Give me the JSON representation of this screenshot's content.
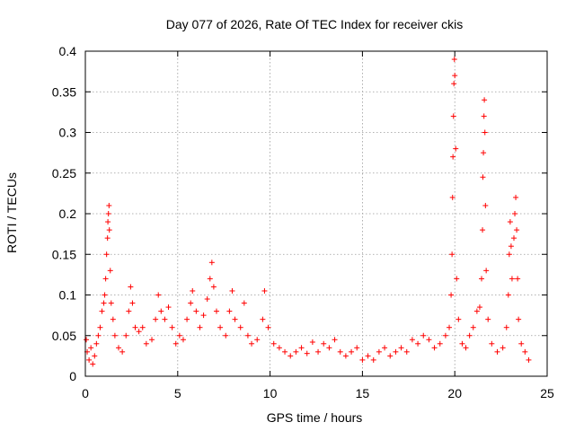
{
  "chart_data": {
    "type": "scatter",
    "title": "Day 077 of 2026, Rate Of TEC Index for receiver ckis",
    "xlabel": "GPS time / hours",
    "ylabel": "ROTI / TECUs",
    "xlim": [
      0,
      25
    ],
    "ylim": [
      0,
      0.4
    ],
    "x_ticks": [
      0,
      5,
      10,
      15,
      20,
      25
    ],
    "y_ticks": [
      0,
      0.05,
      0.1,
      0.15,
      0.2,
      0.25,
      0.3,
      0.35,
      0.4
    ],
    "x_tick_labels": [
      "0",
      "5",
      "10",
      "15",
      "20",
      "25"
    ],
    "y_tick_labels": [
      "0",
      "0.05",
      "0.1",
      "0.15",
      "0.2",
      "0.25",
      "0.3",
      "0.35",
      "0.4"
    ],
    "grid": true,
    "marker": "+",
    "color": "#ff0000",
    "series": [
      {
        "name": "ROTI",
        "points": [
          [
            0.05,
            0.045
          ],
          [
            0.1,
            0.03
          ],
          [
            0.2,
            0.02
          ],
          [
            0.3,
            0.035
          ],
          [
            0.4,
            0.015
          ],
          [
            0.5,
            0.025
          ],
          [
            0.6,
            0.04
          ],
          [
            0.7,
            0.05
          ],
          [
            0.8,
            0.06
          ],
          [
            0.9,
            0.08
          ],
          [
            1.0,
            0.09
          ],
          [
            1.05,
            0.1
          ],
          [
            1.1,
            0.12
          ],
          [
            1.15,
            0.15
          ],
          [
            1.2,
            0.17
          ],
          [
            1.22,
            0.19
          ],
          [
            1.25,
            0.2
          ],
          [
            1.28,
            0.21
          ],
          [
            1.3,
            0.18
          ],
          [
            1.35,
            0.13
          ],
          [
            1.4,
            0.09
          ],
          [
            1.5,
            0.07
          ],
          [
            1.6,
            0.05
          ],
          [
            1.8,
            0.035
          ],
          [
            2.0,
            0.03
          ],
          [
            2.2,
            0.05
          ],
          [
            2.35,
            0.08
          ],
          [
            2.45,
            0.11
          ],
          [
            2.55,
            0.09
          ],
          [
            2.7,
            0.06
          ],
          [
            2.9,
            0.055
          ],
          [
            3.1,
            0.06
          ],
          [
            3.3,
            0.04
          ],
          [
            3.6,
            0.045
          ],
          [
            3.8,
            0.07
          ],
          [
            3.95,
            0.1
          ],
          [
            4.1,
            0.08
          ],
          [
            4.3,
            0.07
          ],
          [
            4.5,
            0.085
          ],
          [
            4.7,
            0.06
          ],
          [
            4.9,
            0.04
          ],
          [
            5.1,
            0.05
          ],
          [
            5.3,
            0.045
          ],
          [
            5.5,
            0.07
          ],
          [
            5.7,
            0.09
          ],
          [
            5.8,
            0.105
          ],
          [
            6.0,
            0.08
          ],
          [
            6.2,
            0.06
          ],
          [
            6.4,
            0.075
          ],
          [
            6.6,
            0.095
          ],
          [
            6.75,
            0.12
          ],
          [
            6.85,
            0.14
          ],
          [
            6.95,
            0.11
          ],
          [
            7.1,
            0.08
          ],
          [
            7.3,
            0.06
          ],
          [
            7.6,
            0.05
          ],
          [
            7.8,
            0.08
          ],
          [
            7.95,
            0.105
          ],
          [
            8.1,
            0.07
          ],
          [
            8.4,
            0.06
          ],
          [
            8.6,
            0.09
          ],
          [
            8.8,
            0.05
          ],
          [
            9.0,
            0.04
          ],
          [
            9.3,
            0.045
          ],
          [
            9.6,
            0.07
          ],
          [
            9.7,
            0.105
          ],
          [
            9.9,
            0.06
          ],
          [
            10.2,
            0.04
          ],
          [
            10.5,
            0.035
          ],
          [
            10.8,
            0.03
          ],
          [
            11.1,
            0.025
          ],
          [
            11.4,
            0.03
          ],
          [
            11.7,
            0.035
          ],
          [
            12.0,
            0.028
          ],
          [
            12.3,
            0.042
          ],
          [
            12.6,
            0.03
          ],
          [
            12.9,
            0.04
          ],
          [
            13.2,
            0.035
          ],
          [
            13.5,
            0.045
          ],
          [
            13.8,
            0.03
          ],
          [
            14.1,
            0.025
          ],
          [
            14.4,
            0.03
          ],
          [
            14.7,
            0.035
          ],
          [
            15.0,
            0.02
          ],
          [
            15.3,
            0.025
          ],
          [
            15.6,
            0.02
          ],
          [
            15.9,
            0.03
          ],
          [
            16.2,
            0.035
          ],
          [
            16.5,
            0.025
          ],
          [
            16.8,
            0.03
          ],
          [
            17.1,
            0.035
          ],
          [
            17.4,
            0.03
          ],
          [
            17.7,
            0.045
          ],
          [
            18.0,
            0.04
          ],
          [
            18.3,
            0.05
          ],
          [
            18.6,
            0.045
          ],
          [
            18.9,
            0.035
          ],
          [
            19.2,
            0.04
          ],
          [
            19.5,
            0.05
          ],
          [
            19.7,
            0.06
          ],
          [
            19.8,
            0.1
          ],
          [
            19.85,
            0.15
          ],
          [
            19.88,
            0.22
          ],
          [
            19.9,
            0.27
          ],
          [
            19.93,
            0.32
          ],
          [
            19.95,
            0.36
          ],
          [
            19.98,
            0.39
          ],
          [
            20.0,
            0.37
          ],
          [
            20.05,
            0.28
          ],
          [
            20.1,
            0.12
          ],
          [
            20.2,
            0.07
          ],
          [
            20.4,
            0.04
          ],
          [
            20.6,
            0.035
          ],
          [
            20.8,
            0.05
          ],
          [
            21.0,
            0.06
          ],
          [
            21.2,
            0.08
          ],
          [
            21.35,
            0.085
          ],
          [
            21.45,
            0.12
          ],
          [
            21.5,
            0.18
          ],
          [
            21.52,
            0.245
          ],
          [
            21.55,
            0.275
          ],
          [
            21.58,
            0.32
          ],
          [
            21.6,
            0.34
          ],
          [
            21.63,
            0.3
          ],
          [
            21.66,
            0.21
          ],
          [
            21.7,
            0.13
          ],
          [
            21.8,
            0.07
          ],
          [
            22.0,
            0.04
          ],
          [
            22.3,
            0.03
          ],
          [
            22.6,
            0.035
          ],
          [
            22.8,
            0.06
          ],
          [
            22.9,
            0.1
          ],
          [
            22.95,
            0.15
          ],
          [
            23.0,
            0.19
          ],
          [
            23.05,
            0.16
          ],
          [
            23.1,
            0.12
          ],
          [
            23.2,
            0.17
          ],
          [
            23.25,
            0.2
          ],
          [
            23.3,
            0.22
          ],
          [
            23.35,
            0.18
          ],
          [
            23.4,
            0.12
          ],
          [
            23.45,
            0.07
          ],
          [
            23.6,
            0.04
          ],
          [
            23.8,
            0.03
          ],
          [
            24.0,
            0.02
          ]
        ]
      }
    ]
  }
}
